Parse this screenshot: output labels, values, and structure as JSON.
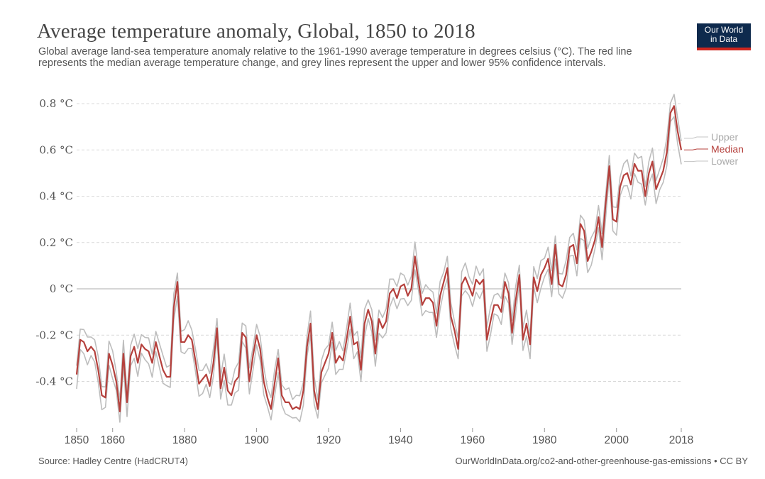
{
  "header": {
    "title": "Average temperature anomaly, Global, 1850 to 2018",
    "subtitle": "Global average land-sea temperature anomaly relative to the 1961-1990 average temperature in degrees celsius (°C). The red line represents the median average temperature change, and grey lines represent the upper and lower 95% confidence intervals.",
    "logo_line1": "Our World",
    "logo_line2": "in Data"
  },
  "footer": {
    "source": "Source: Hadley Centre (HadCRUT4)",
    "credit": "OurWorldInData.org/co2-and-other-greenhouse-gas-emissions • CC BY"
  },
  "colors": {
    "median": "#b5403c",
    "bounds": "#bdbdbd",
    "grid": "#d9d9d9",
    "zero": "#c8c8c8"
  },
  "chart_data": {
    "type": "line",
    "title": "Average temperature anomaly, Global, 1850 to 2018",
    "xlabel": "",
    "ylabel": "",
    "xlim": [
      1850,
      2018
    ],
    "ylim": [
      -0.6,
      0.8
    ],
    "yticks": [
      {
        "value": 0.8,
        "label": "0.8 °C"
      },
      {
        "value": 0.6,
        "label": "0.6 °C"
      },
      {
        "value": 0.4,
        "label": "0.4 °C"
      },
      {
        "value": 0.2,
        "label": "0.2 °C"
      },
      {
        "value": 0,
        "label": "0 °C"
      },
      {
        "value": -0.2,
        "label": "-0.2 °C"
      },
      {
        "value": -0.4,
        "label": "-0.4 °C"
      }
    ],
    "xticks": [
      {
        "value": 1850,
        "label": "1850"
      },
      {
        "value": 1860,
        "label": "1860"
      },
      {
        "value": 1880,
        "label": "1880"
      },
      {
        "value": 1900,
        "label": "1900"
      },
      {
        "value": 1920,
        "label": "1920"
      },
      {
        "value": 1940,
        "label": "1940"
      },
      {
        "value": 1960,
        "label": "1960"
      },
      {
        "value": 1980,
        "label": "1980"
      },
      {
        "value": 2000,
        "label": "2000"
      },
      {
        "value": 2018,
        "label": "2018"
      }
    ],
    "grid": true,
    "legend": [
      "Upper",
      "Median",
      "Lower"
    ],
    "ci_halfwidth": 0.05,
    "series": [
      {
        "name": "Median",
        "x": [
          1850,
          1851,
          1852,
          1853,
          1854,
          1855,
          1856,
          1857,
          1858,
          1859,
          1860,
          1861,
          1862,
          1863,
          1864,
          1865,
          1866,
          1867,
          1868,
          1869,
          1870,
          1871,
          1872,
          1873,
          1874,
          1875,
          1876,
          1877,
          1878,
          1879,
          1880,
          1881,
          1882,
          1883,
          1884,
          1885,
          1886,
          1887,
          1888,
          1889,
          1890,
          1891,
          1892,
          1893,
          1894,
          1895,
          1896,
          1897,
          1898,
          1899,
          1900,
          1901,
          1902,
          1903,
          1904,
          1905,
          1906,
          1907,
          1908,
          1909,
          1910,
          1911,
          1912,
          1913,
          1914,
          1915,
          1916,
          1917,
          1918,
          1919,
          1920,
          1921,
          1922,
          1923,
          1924,
          1925,
          1926,
          1927,
          1928,
          1929,
          1930,
          1931,
          1932,
          1933,
          1934,
          1935,
          1936,
          1937,
          1938,
          1939,
          1940,
          1941,
          1942,
          1943,
          1944,
          1945,
          1946,
          1947,
          1948,
          1949,
          1950,
          1951,
          1952,
          1953,
          1954,
          1955,
          1956,
          1957,
          1958,
          1959,
          1960,
          1961,
          1962,
          1963,
          1964,
          1965,
          1966,
          1967,
          1968,
          1969,
          1970,
          1971,
          1972,
          1973,
          1974,
          1975,
          1976,
          1977,
          1978,
          1979,
          1980,
          1981,
          1982,
          1983,
          1984,
          1985,
          1986,
          1987,
          1988,
          1989,
          1990,
          1991,
          1992,
          1993,
          1994,
          1995,
          1996,
          1997,
          1998,
          1999,
          2000,
          2001,
          2002,
          2003,
          2004,
          2005,
          2006,
          2007,
          2008,
          2009,
          2010,
          2011,
          2012,
          2013,
          2014,
          2015,
          2016,
          2017,
          2018
        ],
        "values": [
          -0.37,
          -0.22,
          -0.23,
          -0.27,
          -0.25,
          -0.27,
          -0.35,
          -0.46,
          -0.47,
          -0.28,
          -0.33,
          -0.4,
          -0.53,
          -0.28,
          -0.49,
          -0.29,
          -0.25,
          -0.32,
          -0.24,
          -0.26,
          -0.27,
          -0.32,
          -0.23,
          -0.29,
          -0.35,
          -0.38,
          -0.38,
          -0.08,
          0.03,
          -0.23,
          -0.23,
          -0.2,
          -0.22,
          -0.31,
          -0.41,
          -0.39,
          -0.37,
          -0.42,
          -0.32,
          -0.17,
          -0.43,
          -0.34,
          -0.44,
          -0.46,
          -0.4,
          -0.38,
          -0.19,
          -0.21,
          -0.4,
          -0.29,
          -0.2,
          -0.26,
          -0.4,
          -0.47,
          -0.52,
          -0.41,
          -0.3,
          -0.46,
          -0.49,
          -0.49,
          -0.52,
          -0.51,
          -0.52,
          -0.44,
          -0.25,
          -0.15,
          -0.44,
          -0.52,
          -0.36,
          -0.32,
          -0.28,
          -0.19,
          -0.32,
          -0.29,
          -0.31,
          -0.22,
          -0.12,
          -0.24,
          -0.23,
          -0.35,
          -0.15,
          -0.09,
          -0.14,
          -0.28,
          -0.13,
          -0.17,
          -0.14,
          -0.02,
          0.0,
          -0.04,
          0.01,
          0.02,
          -0.03,
          0.0,
          0.14,
          0.03,
          -0.07,
          -0.04,
          -0.04,
          -0.06,
          -0.16,
          -0.03,
          0.03,
          0.09,
          -0.12,
          -0.18,
          -0.26,
          0.02,
          0.05,
          0.01,
          -0.03,
          0.04,
          0.02,
          0.04,
          -0.22,
          -0.14,
          -0.07,
          -0.07,
          -0.1,
          0.03,
          -0.02,
          -0.19,
          -0.05,
          0.06,
          -0.22,
          -0.15,
          -0.24,
          0.05,
          -0.01,
          0.06,
          0.09,
          0.13,
          0.02,
          0.19,
          0.02,
          0.01,
          0.06,
          0.18,
          0.19,
          0.11,
          0.28,
          0.25,
          0.12,
          0.16,
          0.21,
          0.31,
          0.18,
          0.37,
          0.53,
          0.3,
          0.29,
          0.44,
          0.49,
          0.5,
          0.45,
          0.54,
          0.51,
          0.51,
          0.4,
          0.5,
          0.55,
          0.43,
          0.47,
          0.51,
          0.59,
          0.76,
          0.79,
          0.68,
          0.6
        ]
      }
    ]
  }
}
